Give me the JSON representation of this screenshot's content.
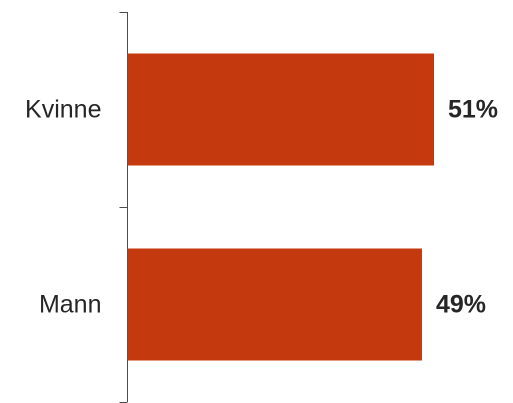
{
  "chart_data": {
    "type": "bar",
    "orientation": "horizontal",
    "categories": [
      "Kvinne",
      "Mann"
    ],
    "values": [
      51,
      49
    ],
    "value_labels": [
      "51%",
      "49%"
    ],
    "xlim": [
      0,
      51
    ],
    "grid": false,
    "legend": "none",
    "bar_color": "#C43A0E"
  }
}
